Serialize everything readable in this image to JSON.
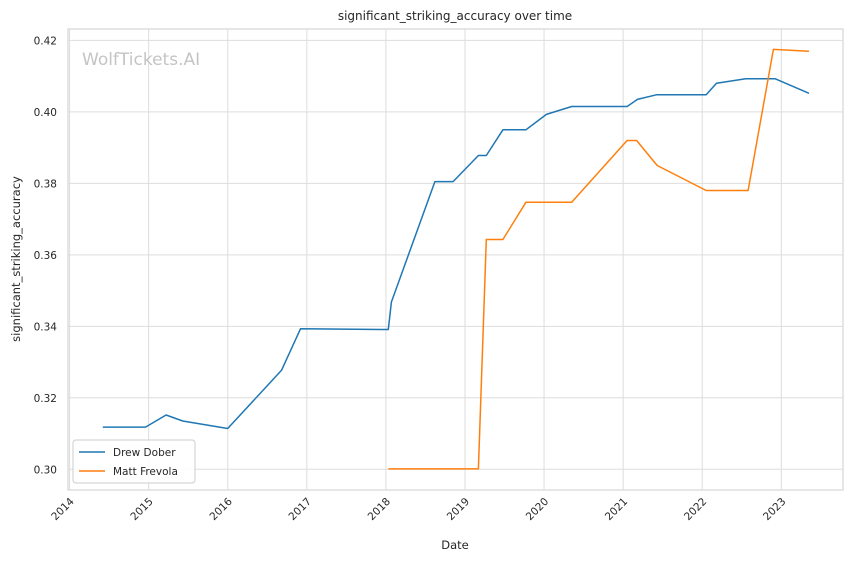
{
  "chart_data": {
    "type": "line",
    "title": "significant_striking_accuracy over time",
    "xlabel": "Date",
    "ylabel": "significant_striking_accuracy",
    "watermark": "WolfTickets.AI",
    "xlim": [
      2013.98,
      2023.78
    ],
    "ylim": [
      0.2942,
      0.4232
    ],
    "x_ticks": [
      2014,
      2015,
      2016,
      2017,
      2018,
      2019,
      2020,
      2021,
      2022,
      2023
    ],
    "x_tick_labels": [
      "2014",
      "2015",
      "2016",
      "2017",
      "2018",
      "2019",
      "2020",
      "2021",
      "2022",
      "2023"
    ],
    "y_ticks": [
      0.3,
      0.32,
      0.34,
      0.36,
      0.38,
      0.4,
      0.42
    ],
    "y_tick_labels": [
      "0.30",
      "0.32",
      "0.34",
      "0.36",
      "0.38",
      "0.40",
      "0.42"
    ],
    "grid": true,
    "legend_position": "lower-left",
    "series": [
      {
        "name": "Drew Dober",
        "color": "#1f77b4",
        "x": [
          2014.42,
          2014.96,
          2015.22,
          2015.43,
          2016.0,
          2016.68,
          2016.92,
          2018.03,
          2018.07,
          2018.62,
          2018.85,
          2019.17,
          2019.27,
          2019.48,
          2019.77,
          2020.03,
          2020.35,
          2021.05,
          2021.18,
          2021.42,
          2022.05,
          2022.18,
          2022.55,
          2022.92,
          2023.35
        ],
        "y": [
          0.3118,
          0.3118,
          0.3152,
          0.3135,
          0.3114,
          0.3277,
          0.3393,
          0.3391,
          0.3468,
          0.3805,
          0.3805,
          0.3878,
          0.3878,
          0.395,
          0.395,
          0.3993,
          0.4015,
          0.4015,
          0.4035,
          0.4048,
          0.4048,
          0.408,
          0.4093,
          0.4093,
          0.4052
        ]
      },
      {
        "name": "Matt Frevola",
        "color": "#ff7f0e",
        "x": [
          2018.03,
          2019.17,
          2019.27,
          2019.48,
          2019.77,
          2020.35,
          2021.05,
          2021.17,
          2021.43,
          2022.05,
          2022.58,
          2022.9,
          2023.35
        ],
        "y": [
          0.3001,
          0.3001,
          0.3643,
          0.3643,
          0.3747,
          0.3747,
          0.392,
          0.392,
          0.385,
          0.378,
          0.378,
          0.4175,
          0.417
        ]
      }
    ]
  }
}
